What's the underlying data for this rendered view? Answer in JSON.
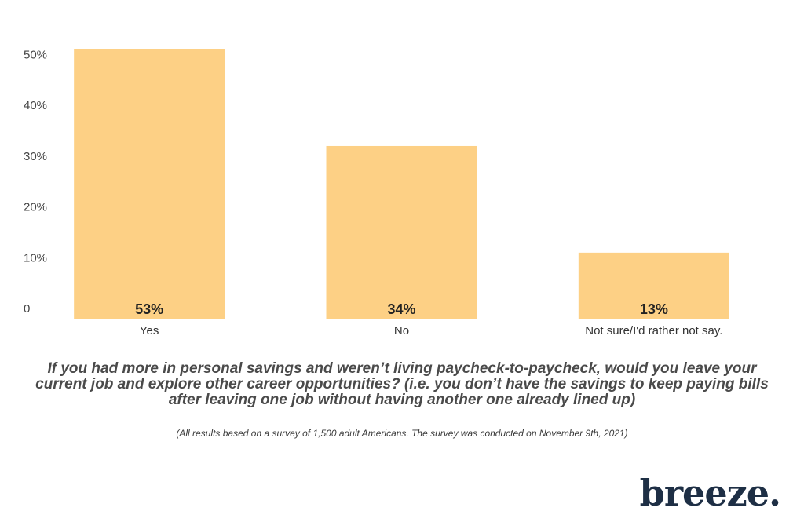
{
  "chart_data": {
    "type": "bar",
    "categories": [
      "Yes",
      "No",
      "Not sure/I'd rather not say."
    ],
    "values": [
      53,
      34,
      13
    ],
    "value_labels": [
      "53%",
      "34%",
      "13%"
    ],
    "title": "",
    "xlabel": "",
    "ylabel": "",
    "ylim": [
      0,
      53
    ],
    "yticks": [
      {
        "value": 0,
        "label": "0"
      },
      {
        "value": 10,
        "label": "10%"
      },
      {
        "value": 20,
        "label": "20%"
      },
      {
        "value": 30,
        "label": "30%"
      },
      {
        "value": 40,
        "label": "40%"
      },
      {
        "value": 50,
        "label": "50%"
      }
    ],
    "grid": false,
    "bar_color": "#fdd085",
    "baseline_color": "#cccccc"
  },
  "question": "If you had more in personal savings and weren’t living paycheck-to-paycheck, would you leave your current job and explore other career opportunities? (i.e. you don’t have the savings to keep paying bills after leaving one job without having another one already lined up)",
  "footnote": "(All results based on a survey of 1,500 adult Americans. The survey was conducted on November 9th, 2021)",
  "logo": {
    "text": "breeze."
  }
}
